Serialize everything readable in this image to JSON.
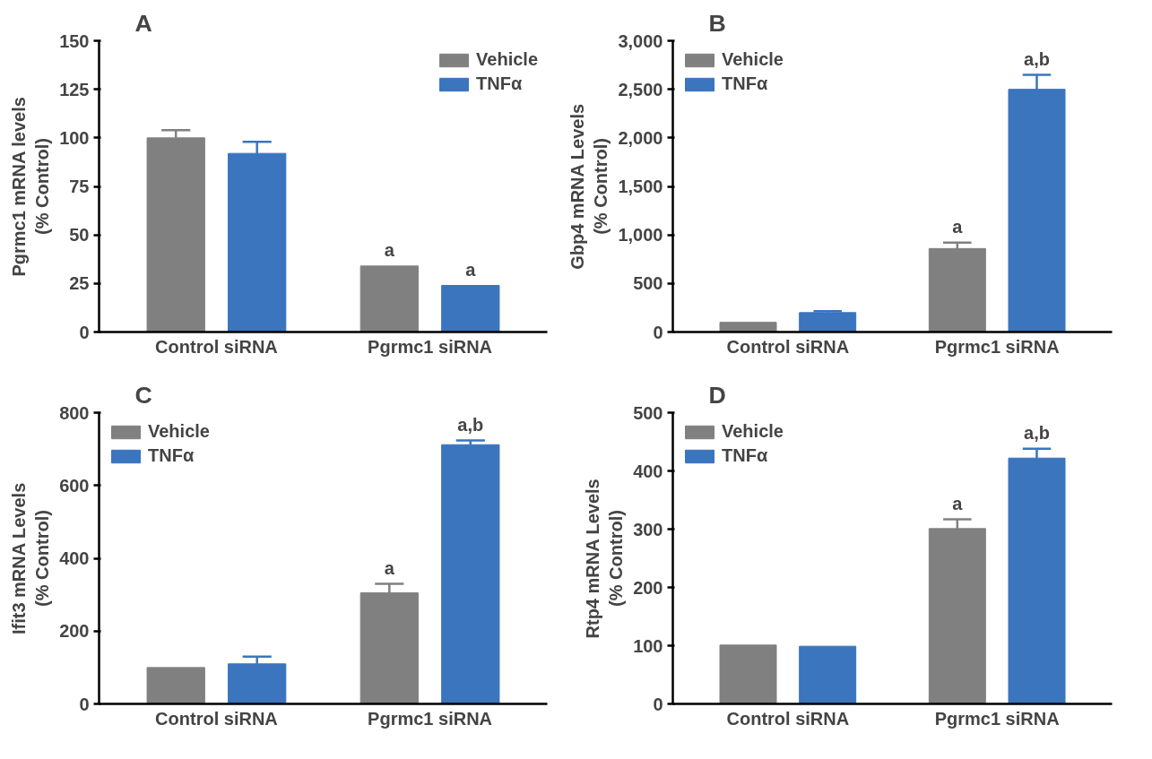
{
  "chart_data": [
    {
      "type": "bar",
      "title": "A",
      "ylabel": "Pgrmc1 mRNA levels\n(% Control)",
      "categories": [
        "Control siRNA",
        "Pgrmc1 siRNA"
      ],
      "ylim": [
        0,
        150
      ],
      "yticks": [
        0,
        25,
        50,
        75,
        100,
        125,
        150
      ],
      "grid": false,
      "legend": "top right",
      "series": [
        {
          "name": "Vehicle",
          "color": "#808080",
          "values": [
            100,
            34
          ],
          "errors": [
            4,
            null
          ],
          "value_labels": [
            null,
            "a"
          ]
        },
        {
          "name": "TNFα",
          "color": "#3a75be",
          "values": [
            92,
            24
          ],
          "errors": [
            6,
            null
          ],
          "value_labels": [
            null,
            "a"
          ]
        }
      ]
    },
    {
      "type": "bar",
      "title": "B",
      "ylabel": "Gbp4 mRNA Levels\n(% Control)",
      "categories": [
        "Control siRNA",
        "Pgrmc1 siRNA"
      ],
      "ylim": [
        0,
        3000
      ],
      "yticks": [
        0,
        500,
        {
          "value": 1000,
          "label": "1,000"
        },
        {
          "value": 1500,
          "label": "1,500"
        },
        {
          "value": 2000,
          "label": "2,000"
        },
        {
          "value": 2500,
          "label": "2,500"
        },
        {
          "value": 3000,
          "label": "3,000"
        }
      ],
      "grid": false,
      "legend": "top left",
      "series": [
        {
          "name": "Vehicle",
          "color": "#808080",
          "values": [
            100,
            860
          ],
          "errors": [
            null,
            60
          ],
          "value_labels": [
            null,
            "a"
          ]
        },
        {
          "name": "TNFα",
          "color": "#3a75be",
          "values": [
            200,
            2500
          ],
          "errors": [
            15,
            150
          ],
          "value_labels": [
            null,
            "a,b"
          ]
        }
      ]
    },
    {
      "type": "bar",
      "title": "C",
      "ylabel": "Ifit3 mRNA Levels\n(% Control)",
      "categories": [
        "Control siRNA",
        "Pgrmc1 siRNA"
      ],
      "ylim": [
        0,
        800
      ],
      "yticks": [
        0,
        200,
        400,
        600,
        800
      ],
      "grid": false,
      "legend": "top left",
      "series": [
        {
          "name": "Vehicle",
          "color": "#808080",
          "values": [
            100,
            305
          ],
          "errors": [
            null,
            25
          ],
          "value_labels": [
            null,
            "a"
          ]
        },
        {
          "name": "TNFα",
          "color": "#3a75be",
          "values": [
            110,
            712
          ],
          "errors": [
            20,
            12
          ],
          "value_labels": [
            null,
            "a,b"
          ]
        }
      ]
    },
    {
      "type": "bar",
      "title": "D",
      "ylabel": "Rtp4 mRNA Levels\n(% Control)",
      "categories": [
        "Control siRNA",
        "Pgrmc1 siRNA"
      ],
      "ylim": [
        0,
        500
      ],
      "yticks": [
        0,
        100,
        200,
        300,
        400,
        500
      ],
      "grid": false,
      "legend": "top left",
      "series": [
        {
          "name": "Vehicle",
          "color": "#808080",
          "values": [
            101,
            301
          ],
          "errors": [
            null,
            16
          ],
          "value_labels": [
            null,
            "a"
          ]
        },
        {
          "name": "TNFα",
          "color": "#3a75be",
          "values": [
            99,
            422
          ],
          "errors": [
            null,
            16
          ],
          "value_labels": [
            null,
            "a,b"
          ]
        }
      ]
    }
  ]
}
